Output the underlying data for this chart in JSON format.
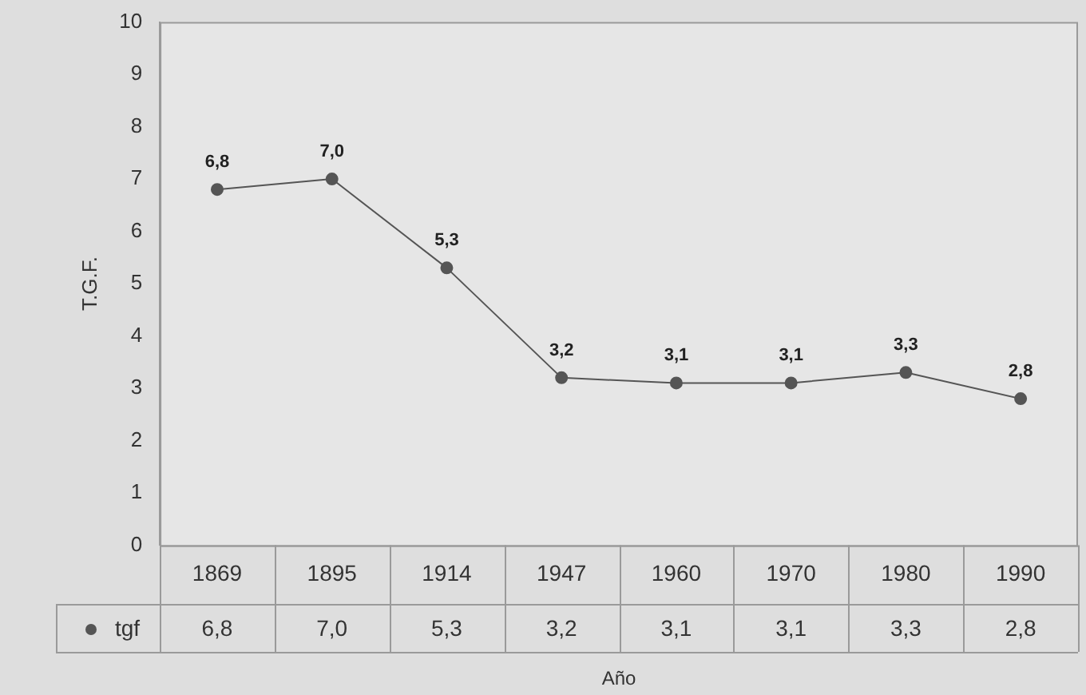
{
  "chart_data": {
    "type": "line",
    "xlabel": "Año",
    "ylabel": "T.G.F.",
    "categories": [
      "1869",
      "1895",
      "1914",
      "1947",
      "1960",
      "1970",
      "1980",
      "1990"
    ],
    "ylim": [
      0,
      10
    ],
    "yticks": [
      0,
      1,
      2,
      3,
      4,
      5,
      6,
      7,
      8,
      9,
      10
    ],
    "grid": false,
    "legend": "bottom left",
    "marker": "circle",
    "line_style": "solid",
    "series": [
      {
        "name": "tgf",
        "color": "#555555",
        "values": [
          6.8,
          7.0,
          5.3,
          3.2,
          3.1,
          3.1,
          3.3,
          2.8
        ],
        "value_labels": [
          "6,8",
          "7,0",
          "5,3",
          "3,2",
          "3,1",
          "3,1",
          "3,3",
          "2,8"
        ]
      }
    ]
  }
}
